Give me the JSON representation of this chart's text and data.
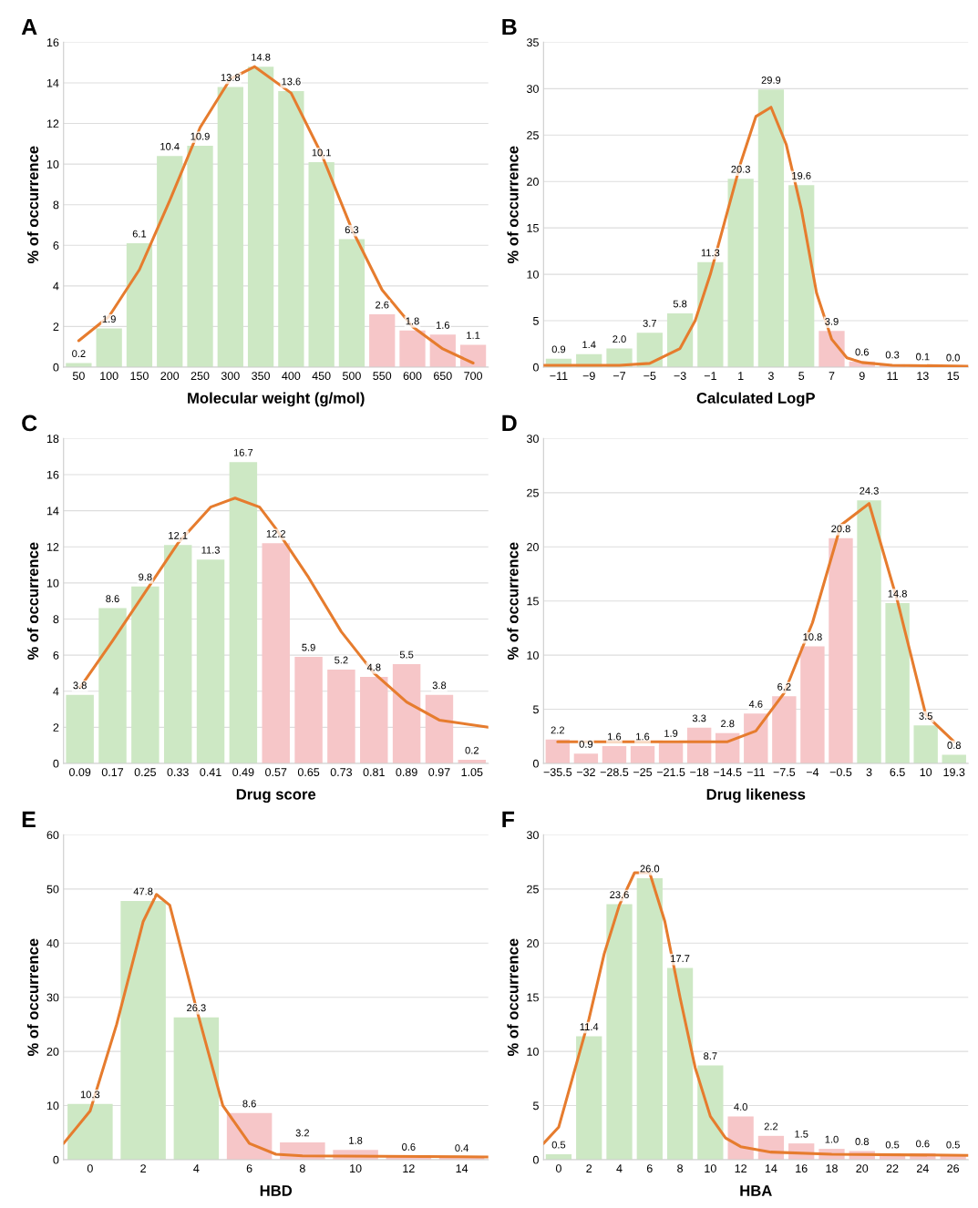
{
  "chart_data": [
    {
      "type": "bar",
      "title": "A",
      "xlabel": "Molecular weight (g/mol)",
      "ylabel": "% of occurrence",
      "x": [
        50,
        100,
        150,
        200,
        250,
        300,
        350,
        400,
        450,
        500,
        550,
        600,
        650,
        700
      ],
      "xlim": [
        25,
        725
      ],
      "xticks": [
        50,
        100,
        150,
        200,
        250,
        300,
        350,
        400,
        450,
        500,
        550,
        600,
        650,
        700
      ],
      "ylim": [
        0,
        16
      ],
      "yticks": [
        0,
        2,
        4,
        6,
        8,
        10,
        12,
        14,
        16
      ],
      "grid": "y",
      "series": [
        {
          "type": "bar",
          "values": [
            0.2,
            1.9,
            6.1,
            10.4,
            10.9,
            13.8,
            14.8,
            13.6,
            10.1,
            6.3,
            2.6,
            1.8,
            1.6,
            1.1
          ],
          "value_labels": [
            "0.2",
            "1.9",
            "6.1",
            "10.4",
            "10.9",
            "13.8",
            "14.8",
            "13.6",
            "10.1",
            "6.3",
            "2.6",
            "1.8",
            "1.6",
            "1.1"
          ],
          "colors": [
            "#cde8c4",
            "#cde8c4",
            "#cde8c4",
            "#cde8c4",
            "#cde8c4",
            "#cde8c4",
            "#cde8c4",
            "#cde8c4",
            "#cde8c4",
            "#cde8c4",
            "#f6c6c8",
            "#f6c6c8",
            "#f6c6c8",
            "#f6c6c8"
          ]
        },
        {
          "type": "line",
          "color": "#e67c2e",
          "x": [
            50,
            100,
            150,
            200,
            250,
            300,
            340,
            400,
            450,
            500,
            550,
            600,
            650,
            700
          ],
          "values": [
            1.3,
            2.5,
            4.8,
            8.2,
            11.8,
            14.2,
            14.8,
            13.5,
            10.5,
            6.8,
            3.8,
            2.0,
            0.9,
            0.2
          ]
        }
      ]
    },
    {
      "type": "bar",
      "title": "B",
      "xlabel": "Calculated LogP",
      "ylabel": "% of occurrence",
      "x": [
        -11,
        -9,
        -7,
        -5,
        -3,
        -1,
        1,
        3,
        5,
        7,
        9,
        11,
        13,
        15
      ],
      "xlim": [
        -12,
        16
      ],
      "xticks": [
        {
          "value": -11,
          "label": "−11"
        },
        {
          "value": -9,
          "label": "−9"
        },
        {
          "value": -7,
          "label": "−7"
        },
        {
          "value": -5,
          "label": "−5"
        },
        {
          "value": -3,
          "label": "−3"
        },
        {
          "value": -1,
          "label": "−1"
        },
        1,
        3,
        5,
        7,
        9,
        11,
        13,
        15
      ],
      "ylim": [
        0,
        35
      ],
      "yticks": [
        0,
        5,
        10,
        15,
        20,
        25,
        30,
        35
      ],
      "grid": "y",
      "series": [
        {
          "type": "bar",
          "values": [
            0.9,
            1.4,
            2.0,
            3.7,
            5.8,
            11.3,
            20.3,
            29.9,
            19.6,
            3.9,
            0.6,
            0.3,
            0.1,
            0.0
          ],
          "value_labels": [
            "0.9",
            "1.4",
            "2.0",
            "3.7",
            "5.8",
            "11.3",
            "20.3",
            "29.9",
            "19.6",
            "3.9",
            "0.6",
            "0.3",
            "0.1",
            "0.0"
          ],
          "colors": [
            "#cde8c4",
            "#cde8c4",
            "#cde8c4",
            "#cde8c4",
            "#cde8c4",
            "#cde8c4",
            "#cde8c4",
            "#cde8c4",
            "#cde8c4",
            "#f6c6c8",
            "#f6c6c8",
            "#f6c6c8",
            "#f6c6c8",
            "#f6c6c8"
          ]
        },
        {
          "type": "line",
          "color": "#e67c2e",
          "x": [
            -12,
            -7,
            -5,
            -3,
            -2,
            -1,
            0,
            1,
            2,
            3,
            4,
            5,
            6,
            7,
            8,
            9,
            11,
            16
          ],
          "values": [
            0.2,
            0.2,
            0.4,
            2,
            5,
            10,
            16,
            22,
            27,
            28,
            24,
            17,
            8,
            3,
            1,
            0.5,
            0.2,
            0.1
          ]
        }
      ]
    },
    {
      "type": "bar",
      "title": "C",
      "xlabel": "Drug score",
      "ylabel": "% of occurrence",
      "x": [
        0.09,
        0.17,
        0.25,
        0.33,
        0.41,
        0.49,
        0.57,
        0.65,
        0.73,
        0.81,
        0.89,
        0.97,
        1.05
      ],
      "xlim": [
        0.05,
        1.09
      ],
      "xticks": [
        0.09,
        0.17,
        0.25,
        0.33,
        0.41,
        0.49,
        0.57,
        0.65,
        0.73,
        0.81,
        0.89,
        0.97,
        1.05
      ],
      "ylim": [
        0,
        18
      ],
      "yticks": [
        0,
        2,
        4,
        6,
        8,
        10,
        12,
        14,
        16,
        18
      ],
      "grid": "y",
      "series": [
        {
          "type": "bar",
          "values": [
            3.8,
            8.6,
            9.8,
            12.1,
            11.3,
            16.7,
            12.2,
            5.9,
            5.2,
            4.8,
            5.5,
            3.8,
            0.2
          ],
          "value_labels": [
            "3.8",
            "8.6",
            "9.8",
            "12.1",
            "11.3",
            "16.7",
            "12.2",
            "5.9",
            "5.2",
            "4.8",
            "5.5",
            "3.8",
            "0.2"
          ],
          "colors": [
            "#cde8c4",
            "#cde8c4",
            "#cde8c4",
            "#cde8c4",
            "#cde8c4",
            "#cde8c4",
            "#f6c6c8",
            "#f6c6c8",
            "#f6c6c8",
            "#f6c6c8",
            "#f6c6c8",
            "#f6c6c8",
            "#f6c6c8"
          ]
        },
        {
          "type": "line",
          "color": "#e67c2e",
          "x": [
            0.09,
            0.17,
            0.25,
            0.33,
            0.41,
            0.47,
            0.53,
            0.57,
            0.65,
            0.73,
            0.81,
            0.89,
            0.97,
            1.09
          ],
          "values": [
            4.2,
            6.8,
            9.5,
            12.2,
            14.2,
            14.7,
            14.2,
            13,
            10.3,
            7.3,
            5,
            3.4,
            2.4,
            2.0
          ]
        }
      ]
    },
    {
      "type": "bar",
      "title": "D",
      "xlabel": "Drug likeness",
      "ylabel": "% of occurrence",
      "categories": [
        "−35.5",
        "−32",
        "−28.5",
        "−25",
        "−21.5",
        "−18",
        "−14.5",
        "−11",
        "−7.5",
        "−4",
        "−0.5",
        "3",
        "6.5",
        "10",
        "19.3"
      ],
      "ylim": [
        0,
        30
      ],
      "yticks": [
        0,
        5,
        10,
        15,
        20,
        25,
        30
      ],
      "grid": "y",
      "series": [
        {
          "type": "bar",
          "values": [
            2.2,
            0.9,
            1.6,
            1.6,
            1.9,
            3.3,
            2.8,
            4.6,
            6.2,
            10.8,
            20.8,
            24.3,
            14.8,
            3.5,
            0.8
          ],
          "value_labels": [
            "2.2",
            "0.9",
            "1.6",
            "1.6",
            "1.9",
            "3.3",
            "2.8",
            "4.6",
            "6.2",
            "10.8",
            "20.8",
            "24.3",
            "14.8",
            "3.5",
            "0.8"
          ],
          "colors": [
            "#f6c6c8",
            "#f6c6c8",
            "#f6c6c8",
            "#f6c6c8",
            "#f6c6c8",
            "#f6c6c8",
            "#f6c6c8",
            "#f6c6c8",
            "#f6c6c8",
            "#f6c6c8",
            "#f6c6c8",
            "#cde8c4",
            "#cde8c4",
            "#cde8c4",
            "#cde8c4"
          ]
        },
        {
          "type": "line",
          "color": "#e67c2e",
          "values": [
            2.0,
            2.0,
            2.0,
            2.0,
            2.0,
            2.0,
            2.0,
            3.0,
            6.5,
            13,
            22,
            24,
            15,
            4.5,
            2.0
          ]
        }
      ]
    },
    {
      "type": "bar",
      "title": "E",
      "xlabel": "HBD",
      "ylabel": "% of occurrence",
      "x": [
        0,
        2,
        4,
        6,
        8,
        10,
        12,
        14
      ],
      "xlim": [
        -1,
        15
      ],
      "xticks": [
        0,
        2,
        4,
        6,
        8,
        10,
        12,
        14
      ],
      "ylim": [
        0,
        60
      ],
      "yticks": [
        0,
        10,
        20,
        30,
        40,
        50,
        60
      ],
      "grid": "y",
      "series": [
        {
          "type": "bar",
          "values": [
            10.3,
            47.8,
            26.3,
            8.6,
            3.2,
            1.8,
            0.6,
            0.4
          ],
          "value_labels": [
            "10.3",
            "47.8",
            "26.3",
            "8.6",
            "3.2",
            "1.8",
            "0.6",
            "0.4"
          ],
          "colors": [
            "#cde8c4",
            "#cde8c4",
            "#cde8c4",
            "#f6c6c8",
            "#f6c6c8",
            "#f6c6c8",
            "#f6c6c8",
            "#f6c6c8"
          ]
        },
        {
          "type": "line",
          "color": "#e67c2e",
          "x": [
            -1,
            0,
            1,
            2,
            2.5,
            3,
            4,
            5,
            6,
            7,
            8,
            15
          ],
          "values": [
            3,
            9,
            25,
            44,
            49,
            47,
            28,
            10,
            3,
            1,
            0.7,
            0.5
          ]
        }
      ]
    },
    {
      "type": "bar",
      "title": "F",
      "xlabel": "HBA",
      "ylabel": "% of occurrence",
      "x": [
        0,
        2,
        4,
        6,
        8,
        10,
        12,
        14,
        16,
        18,
        20,
        22,
        24,
        26
      ],
      "xlim": [
        -1,
        27
      ],
      "xticks": [
        0,
        2,
        4,
        6,
        8,
        10,
        12,
        14,
        16,
        18,
        20,
        22,
        24,
        26
      ],
      "ylim": [
        0,
        30
      ],
      "yticks": [
        0,
        5,
        10,
        15,
        20,
        25,
        30
      ],
      "grid": "y",
      "series": [
        {
          "type": "bar",
          "values": [
            0.5,
            11.4,
            23.6,
            26.0,
            17.7,
            8.7,
            4.0,
            2.2,
            1.5,
            1.0,
            0.8,
            0.5,
            0.6,
            0.5
          ],
          "value_labels": [
            "0.5",
            "11.4",
            "23.6",
            "26.0",
            "17.7",
            "8.7",
            "4.0",
            "2.2",
            "1.5",
            "1.0",
            "0.8",
            "0.5",
            "0.6",
            "0.5"
          ],
          "colors": [
            "#cde8c4",
            "#cde8c4",
            "#cde8c4",
            "#cde8c4",
            "#cde8c4",
            "#cde8c4",
            "#f6c6c8",
            "#f6c6c8",
            "#f6c6c8",
            "#f6c6c8",
            "#f6c6c8",
            "#f6c6c8",
            "#f6c6c8",
            "#f6c6c8"
          ]
        },
        {
          "type": "line",
          "color": "#e67c2e",
          "x": [
            -1,
            0,
            1,
            2,
            3,
            4,
            5,
            6,
            7,
            8,
            9,
            10,
            11,
            12,
            14,
            18,
            27
          ],
          "values": [
            1.5,
            3,
            8,
            13,
            19,
            23.5,
            26.5,
            26.5,
            22,
            15,
            8.5,
            4,
            2,
            1.2,
            0.7,
            0.5,
            0.4
          ]
        }
      ]
    }
  ]
}
